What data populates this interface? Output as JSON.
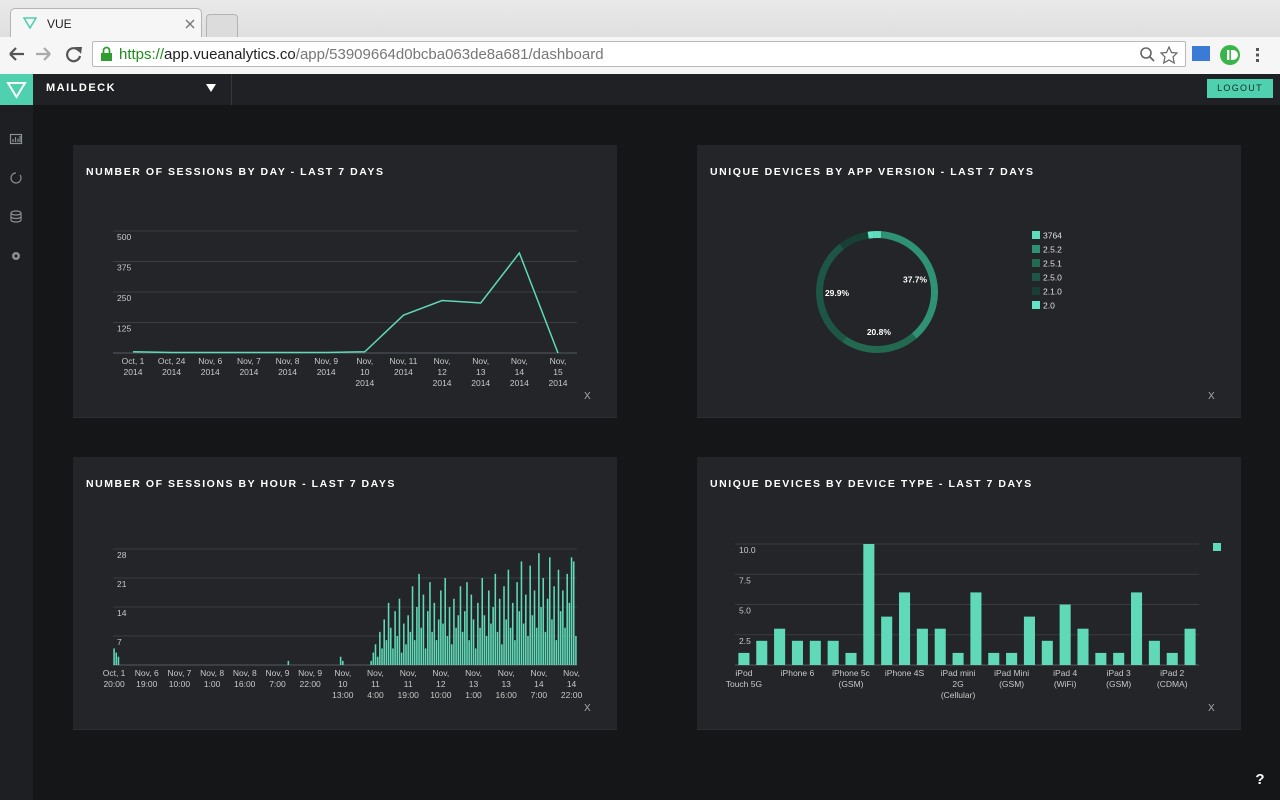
{
  "browser": {
    "tab_title": "VUE",
    "url": {
      "scheme": "https://",
      "host": "app.vueanalytics.co",
      "path": "/app/53909664d0bcba063de8a681/dashboard"
    }
  },
  "app": {
    "workspace": "MAILDECK",
    "logout": "LOGOUT",
    "help": "?"
  },
  "chart_data": [
    {
      "type": "line",
      "title": "NUMBER OF SESSIONS BY DAY - LAST 7 DAYS",
      "categories": [
        "Oct, 1 2014",
        "Oct, 24 2014",
        "Nov, 6 2014",
        "Nov, 7 2014",
        "Nov, 8 2014",
        "Nov, 9 2014",
        "Nov, 10 2014",
        "Nov, 11 2014",
        "Nov, 12 2014",
        "Nov, 13 2014",
        "Nov, 14 2014",
        "Nov, 15 2014"
      ],
      "values": [
        5,
        2,
        2,
        2,
        2,
        2,
        5,
        155,
        215,
        205,
        410,
        0
      ],
      "color": "#5fd9b8",
      "ylim": [
        0,
        500
      ],
      "yticks": [
        125,
        250,
        375,
        500
      ],
      "grid": true,
      "close_label": "X"
    },
    {
      "type": "pie",
      "donut": true,
      "title": "UNIQUE DEVICES BY APP VERSION - LAST 7 DAYS",
      "categories": [
        "3764",
        "2.5.2",
        "2.5.1",
        "2.5.0",
        "2.1.0",
        "2.0"
      ],
      "values": [
        2.1,
        37.7,
        20.8,
        29.9,
        8.0,
        1.5
      ],
      "value_labels": [
        null,
        "37.7%",
        "20.8%",
        "29.9%",
        null,
        null
      ],
      "colors": [
        "#5fdcbd",
        "#2f9274",
        "#22694f",
        "#1d5644",
        "#173f33",
        "#62e3c3"
      ],
      "legend": "right",
      "close_label": "X"
    },
    {
      "type": "bar",
      "title": "NUMBER OF SESSIONS BY HOUR - LAST 7 DAYS",
      "categories": [
        "Oct, 1 20:00",
        null,
        null,
        null,
        null,
        null,
        null,
        null,
        null,
        null,
        null,
        null,
        null,
        null,
        null,
        "Nov, 6 19:00",
        null,
        null,
        null,
        null,
        null,
        null,
        null,
        null,
        null,
        null,
        null,
        null,
        null,
        null,
        "Nov, 7 10:00",
        null,
        null,
        null,
        null,
        null,
        null,
        null,
        null,
        null,
        null,
        null,
        null,
        null,
        null,
        "Nov, 8 1:00",
        null,
        null,
        null,
        null,
        null,
        null,
        null,
        null,
        null,
        null,
        null,
        null,
        null,
        null,
        "Nov, 8 16:00",
        null,
        null,
        null,
        null,
        null,
        null,
        null,
        null,
        null,
        null,
        null,
        null,
        null,
        null,
        "Nov, 9 7:00",
        null,
        null,
        null,
        null,
        null,
        null,
        null,
        null,
        null,
        null,
        null,
        null,
        null,
        null,
        "Nov, 9 22:00",
        null,
        null,
        null,
        null,
        null,
        null,
        null,
        null,
        null,
        null,
        null,
        null,
        null,
        null,
        "Nov, 10 13:00",
        null,
        null,
        null,
        null,
        null,
        null,
        null,
        null,
        null,
        null,
        null,
        null,
        null,
        null,
        "Nov, 11 4:00",
        null,
        null,
        null,
        null,
        null,
        null,
        null,
        null,
        null,
        null,
        null,
        null,
        null,
        null,
        "Nov, 11 19:00",
        null,
        null,
        null,
        null,
        null,
        null,
        null,
        null,
        null,
        null,
        null,
        null,
        null,
        null,
        "Nov, 12 10:00",
        null,
        null,
        null,
        null,
        null,
        null,
        null,
        null,
        null,
        null,
        null,
        null,
        null,
        null,
        "Nov, 13 1:00",
        null,
        null,
        null,
        null,
        null,
        null,
        null,
        null,
        null,
        null,
        null,
        null,
        null,
        null,
        "Nov, 13 16:00",
        null,
        null,
        null,
        null,
        null,
        null,
        null,
        null,
        null,
        null,
        null,
        null,
        null,
        null,
        "Nov, 14 7:00",
        null,
        null,
        null,
        null,
        null,
        null,
        null,
        null,
        null,
        null,
        null,
        null,
        null,
        null,
        "Nov, 14 22:00",
        null,
        null
      ],
      "values": [
        4,
        3,
        2,
        0,
        0,
        0,
        0,
        0,
        0,
        0,
        0,
        0,
        0,
        0,
        0,
        0,
        0,
        0,
        0,
        0,
        0,
        0,
        0,
        0,
        0,
        0,
        0,
        0,
        0,
        0,
        0,
        0,
        0,
        0,
        0,
        0,
        0,
        0,
        0,
        0,
        0,
        0,
        0,
        0,
        0,
        0,
        0,
        0,
        0,
        0,
        0,
        0,
        0,
        0,
        0,
        0,
        0,
        0,
        0,
        0,
        0,
        0,
        0,
        0,
        0,
        0,
        0,
        0,
        0,
        0,
        0,
        0,
        0,
        0,
        0,
        0,
        0,
        0,
        0,
        0,
        1,
        0,
        0,
        0,
        0,
        0,
        0,
        0,
        0,
        0,
        0,
        0,
        0,
        0,
        0,
        0,
        0,
        0,
        0,
        0,
        0,
        0,
        0,
        0,
        2,
        1,
        0,
        0,
        0,
        0,
        0,
        0,
        0,
        0,
        0,
        0,
        0,
        0,
        1,
        3,
        5,
        2,
        8,
        4,
        11,
        6,
        15,
        9,
        4,
        13,
        7,
        16,
        3,
        10,
        5,
        12,
        8,
        19,
        6,
        14,
        22,
        9,
        17,
        4,
        13,
        20,
        8,
        15,
        6,
        11,
        18,
        10,
        21,
        7,
        14,
        5,
        16,
        9,
        12,
        19,
        8,
        13,
        20,
        6,
        17,
        11,
        4,
        15,
        9,
        21,
        12,
        7,
        18,
        10,
        14,
        22,
        8,
        16,
        5,
        19,
        11,
        23,
        9,
        15,
        6,
        20,
        13,
        25,
        10,
        17,
        7,
        24,
        12,
        18,
        9,
        27,
        14,
        21,
        8,
        16,
        26,
        11,
        19,
        6,
        23,
        13,
        18,
        9,
        22,
        15,
        26,
        25,
        7
      ],
      "color": "#5fd9b8",
      "ylim": [
        0,
        28
      ],
      "yticks": [
        7,
        14,
        21,
        28
      ],
      "grid": true,
      "close_label": "X"
    },
    {
      "type": "bar",
      "title": "UNIQUE DEVICES BY DEVICE TYPE - LAST 7 DAYS",
      "categories": [
        "iPod Touch 5G",
        null,
        null,
        "iPhone 6",
        null,
        null,
        "iPhone 5c (GSM)",
        null,
        null,
        "iPhone 4S",
        null,
        null,
        "iPad mini 2G (Cellular)",
        null,
        null,
        "iPad Mini (GSM)",
        null,
        null,
        "iPad 4 (WiFi)",
        null,
        null,
        "iPad 3 (GSM)",
        null,
        null,
        "iPad 2 (CDMA)",
        null
      ],
      "values": [
        1,
        2,
        3,
        2,
        2,
        2,
        1,
        10,
        4,
        6,
        3,
        3,
        1,
        6,
        1,
        1,
        4,
        2,
        5,
        3,
        1,
        1,
        6,
        2,
        1,
        3
      ],
      "color": "#5fd9b8",
      "ylim": [
        0,
        10
      ],
      "yticks": [
        2.5,
        {
          "value": 5,
          "label": "5.0"
        },
        7.5,
        {
          "value": 10,
          "label": "10.0"
        }
      ],
      "grid": true,
      "legend": "upper right",
      "close_label": "X"
    }
  ]
}
